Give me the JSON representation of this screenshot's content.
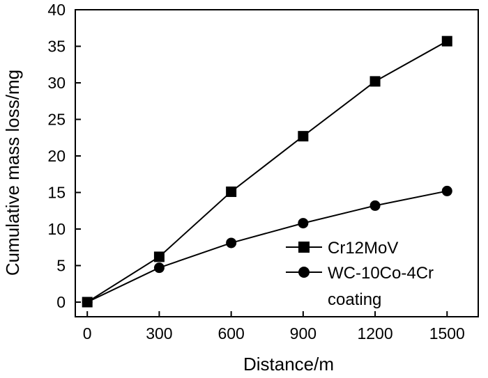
{
  "chart_data": {
    "type": "line",
    "title": "",
    "xlabel": "Distance/m",
    "ylabel": "Cumulative mass loss/mg",
    "xlim": [
      -50,
      1630
    ],
    "ylim": [
      -2,
      40
    ],
    "xticks": [
      0,
      300,
      600,
      900,
      1200,
      1500
    ],
    "yticks": [
      0,
      5,
      10,
      15,
      20,
      25,
      30,
      35,
      40
    ],
    "grid": false,
    "legend_position": "bottom-right",
    "series": [
      {
        "name": "Cr12MoV",
        "marker": "square",
        "x": [
          0,
          300,
          600,
          900,
          1200,
          1500
        ],
        "y": [
          0,
          6.2,
          15.1,
          22.7,
          30.2,
          35.7
        ]
      },
      {
        "name_lines": [
          "WC-10Co-4Cr",
          "coating"
        ],
        "marker": "circle",
        "x": [
          0,
          300,
          600,
          900,
          1200,
          1500
        ],
        "y": [
          0,
          4.7,
          8.1,
          10.8,
          13.2,
          15.2
        ]
      }
    ]
  }
}
